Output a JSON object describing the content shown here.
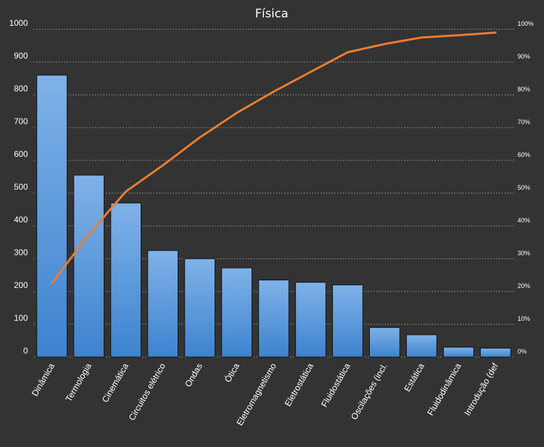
{
  "chart_data": {
    "type": "bar",
    "title": "Física",
    "categories": [
      "Dinâmica",
      "Termologia",
      "Cinemática",
      "Circuitos elétrico",
      "Ondas",
      "Ótica",
      "Eletromagnetismo",
      "Eletrostática",
      "Fluidostática",
      "Oscilações (incl.",
      "Estática",
      "Fluidodinâmica",
      "Introdução (def"
    ],
    "series": [
      {
        "type": "bar",
        "values": [
          860,
          555,
          470,
          325,
          300,
          272,
          235,
          228,
          220,
          90,
          68,
          30,
          27
        ]
      },
      {
        "type": "line",
        "axis": "secondary",
        "values": [
          22.5,
          37.5,
          50.5,
          58.5,
          67,
          74.5,
          81,
          87,
          93,
          95.5,
          97.5,
          98.2,
          99
        ]
      }
    ],
    "ylim": [
      0,
      1000
    ],
    "yticks": [
      "0",
      "100",
      "200",
      "300",
      "400",
      "500",
      "600",
      "700",
      "800",
      "900",
      "1000"
    ],
    "y2lim": [
      0,
      100
    ],
    "y2ticks": [
      "0%",
      "10%",
      "20%",
      "30%",
      "40%",
      "50%",
      "60%",
      "70%",
      "80%",
      "90%",
      "100%"
    ],
    "grid": true,
    "legend": "none",
    "colors": {
      "background": "#333333",
      "bar_top": "#7fb2e8",
      "bar_bottom": "#3d83cf",
      "bar_stroke": "#111111",
      "line": "#ed7d31",
      "grid": "#a6a6a6",
      "text": "#ffffff"
    }
  }
}
